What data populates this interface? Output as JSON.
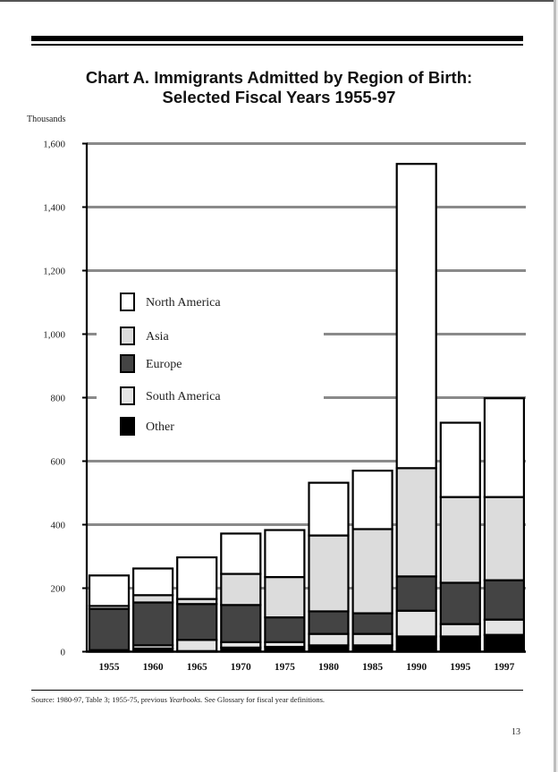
{
  "page": {
    "title_line1": "Chart A.  Immigrants Admitted by Region of Birth:",
    "title_line2": "Selected Fiscal Years 1955-97",
    "y_unit_label": "Thousands",
    "source_prefix": "Source:  1980-97, Table 3; 1955-75, previous ",
    "source_italic": "Yearbooks.",
    "source_suffix": "  See Glossary for fiscal year definitions.",
    "page_number": "13"
  },
  "colors": {
    "North America": "#ffffff",
    "Asia": "#dcdcdc",
    "Europe": "#444444",
    "South America": "#e4e4e4",
    "Other": "#000000",
    "gridline": "#8a8a8a",
    "axis": "#000000"
  },
  "chart_data": {
    "type": "bar",
    "stacked": true,
    "title": "Chart A.  Immigrants Admitted by Region of Birth: Selected Fiscal Years 1955-97",
    "xlabel": "",
    "ylabel": "Thousands",
    "ylim": [
      0,
      1600
    ],
    "yticks": [
      0,
      200,
      400,
      600,
      800,
      1000,
      1200,
      1400,
      1600
    ],
    "ytick_labels": [
      "0",
      "200",
      "400",
      "600",
      "800",
      "1,000",
      "1,200",
      "1,400",
      "1,600"
    ],
    "grid": true,
    "legend_position": "upper-left-inside",
    "categories": [
      "1955",
      "1960",
      "1965",
      "1970",
      "1975",
      "1980",
      "1985",
      "1990",
      "1995",
      "1997"
    ],
    "series": [
      {
        "name": "Other",
        "values": [
          5,
          10,
          2,
          13,
          15,
          20,
          20,
          48,
          48,
          53
        ]
      },
      {
        "name": "South America",
        "values": [
          0,
          10,
          35,
          17,
          15,
          36,
          36,
          81,
          39,
          48
        ]
      },
      {
        "name": "Europe",
        "values": [
          130,
          135,
          113,
          117,
          78,
          71,
          65,
          108,
          130,
          124
        ]
      },
      {
        "name": "Asia",
        "values": [
          9,
          23,
          16,
          98,
          127,
          239,
          265,
          341,
          270,
          262
        ]
      },
      {
        "name": "North America",
        "values": [
          96,
          84,
          131,
          127,
          148,
          166,
          184,
          958,
          234,
          311
        ]
      }
    ],
    "totals": [
      240,
      262,
      297,
      372,
      383,
      532,
      570,
      1536,
      721,
      798
    ],
    "legend_order": [
      "North America",
      "Asia",
      "Europe",
      "South America",
      "Other"
    ]
  }
}
